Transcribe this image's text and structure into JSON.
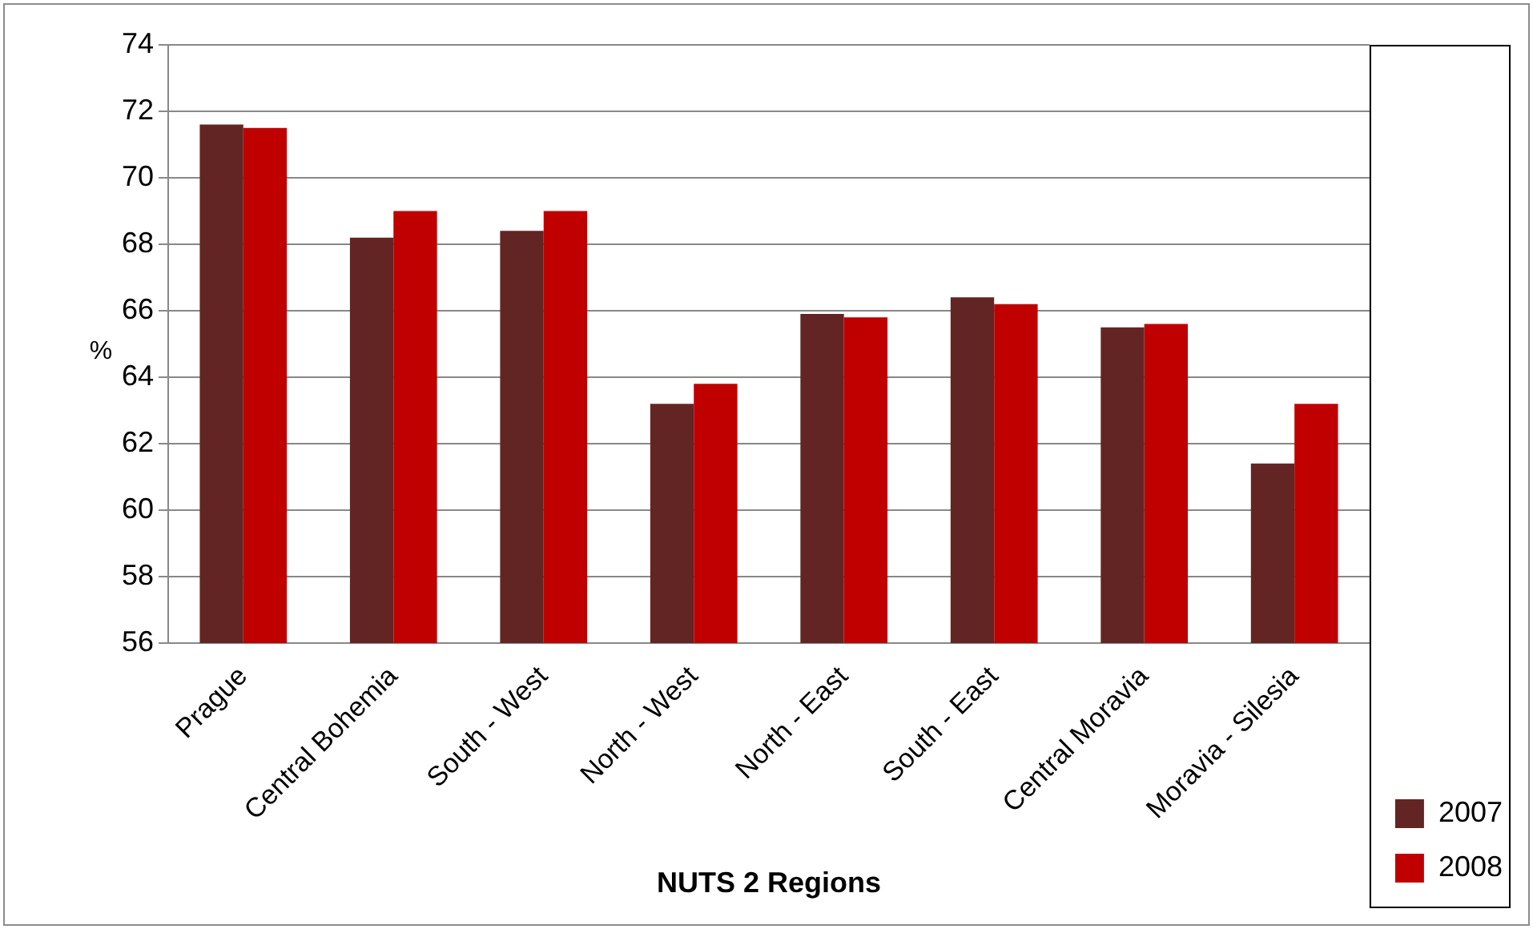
{
  "chart_data": {
    "type": "bar",
    "xlabel": "NUTS 2 Regions",
    "ylabel": "%",
    "categories": [
      "Prague",
      "Central Bohemia",
      "South - West",
      "North - West",
      "North - East",
      "South - East",
      "Central Moravia",
      "Moravia - Silesia"
    ],
    "series": [
      {
        "name": "2007",
        "color": "#632523",
        "values": [
          71.6,
          68.2,
          68.4,
          63.2,
          65.9,
          66.4,
          65.5,
          61.4
        ]
      },
      {
        "name": "2008",
        "color": "#c00000",
        "values": [
          71.5,
          69.0,
          69.0,
          63.8,
          65.8,
          66.2,
          65.6,
          63.2
        ]
      }
    ],
    "ylim": [
      56,
      74
    ],
    "yticks": [
      56,
      58,
      60,
      62,
      64,
      66,
      68,
      70,
      72,
      74
    ],
    "grid": "y",
    "legend": "right"
  }
}
